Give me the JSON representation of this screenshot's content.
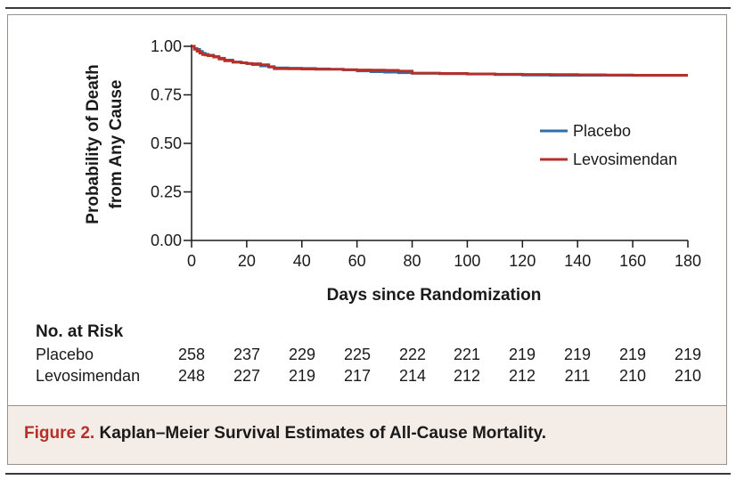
{
  "chart_data": {
    "type": "line",
    "ylabel_line1": "Probability of Death",
    "ylabel_line2": "from Any Cause",
    "xlabel": "Days since Randomization",
    "xlim": [
      0,
      180
    ],
    "ylim": [
      0,
      1
    ],
    "x_ticks": [
      0,
      20,
      40,
      60,
      80,
      100,
      120,
      140,
      160,
      180
    ],
    "y_ticks": [
      "0.00",
      "0.25",
      "0.50",
      "0.75",
      "1.00"
    ],
    "y_tick_values": [
      0,
      0.25,
      0.5,
      0.75,
      1.0
    ],
    "grid": false,
    "legend_position": "right",
    "series": [
      {
        "name": "Placebo",
        "color": "#2e6fa8",
        "x": [
          0,
          1,
          2,
          3,
          4,
          5,
          6,
          8,
          10,
          12,
          15,
          18,
          20,
          22,
          25,
          28,
          30,
          35,
          40,
          45,
          50,
          55,
          60,
          65,
          70,
          75,
          80,
          90,
          100,
          110,
          120,
          130,
          140,
          150,
          160,
          170,
          180
        ],
        "y": [
          1.0,
          0.99,
          0.985,
          0.975,
          0.965,
          0.96,
          0.955,
          0.948,
          0.94,
          0.93,
          0.92,
          0.915,
          0.91,
          0.905,
          0.898,
          0.892,
          0.89,
          0.888,
          0.887,
          0.885,
          0.882,
          0.878,
          0.872,
          0.868,
          0.866,
          0.863,
          0.86,
          0.858,
          0.856,
          0.853,
          0.851,
          0.85,
          0.85,
          0.85,
          0.849,
          0.849,
          0.849
        ]
      },
      {
        "name": "Levosimendan",
        "color": "#b5302a",
        "x": [
          0,
          1,
          2,
          3,
          4,
          5,
          6,
          8,
          10,
          12,
          15,
          18,
          20,
          22,
          25,
          28,
          30,
          35,
          40,
          45,
          50,
          55,
          60,
          65,
          70,
          75,
          80,
          90,
          100,
          110,
          120,
          130,
          140,
          150,
          160,
          170,
          180
        ],
        "y": [
          1.0,
          0.985,
          0.975,
          0.965,
          0.958,
          0.955,
          0.952,
          0.945,
          0.935,
          0.925,
          0.918,
          0.915,
          0.912,
          0.91,
          0.905,
          0.895,
          0.885,
          0.884,
          0.883,
          0.882,
          0.882,
          0.88,
          0.878,
          0.877,
          0.876,
          0.872,
          0.862,
          0.86,
          0.858,
          0.856,
          0.855,
          0.854,
          0.853,
          0.852,
          0.851,
          0.851,
          0.851
        ]
      }
    ]
  },
  "risk_table": {
    "title": "No. at Risk",
    "rows": [
      {
        "label": "Placebo",
        "values": [
          "258",
          "237",
          "229",
          "225",
          "222",
          "221",
          "219",
          "219",
          "219",
          "219"
        ]
      },
      {
        "label": "Levosimendan",
        "values": [
          "248",
          "227",
          "219",
          "217",
          "214",
          "212",
          "212",
          "211",
          "210",
          "210"
        ]
      }
    ]
  },
  "caption": {
    "label": "Figure 2.",
    "text": "Kaplan–Meier Survival Estimates of All-Cause Mortality."
  }
}
